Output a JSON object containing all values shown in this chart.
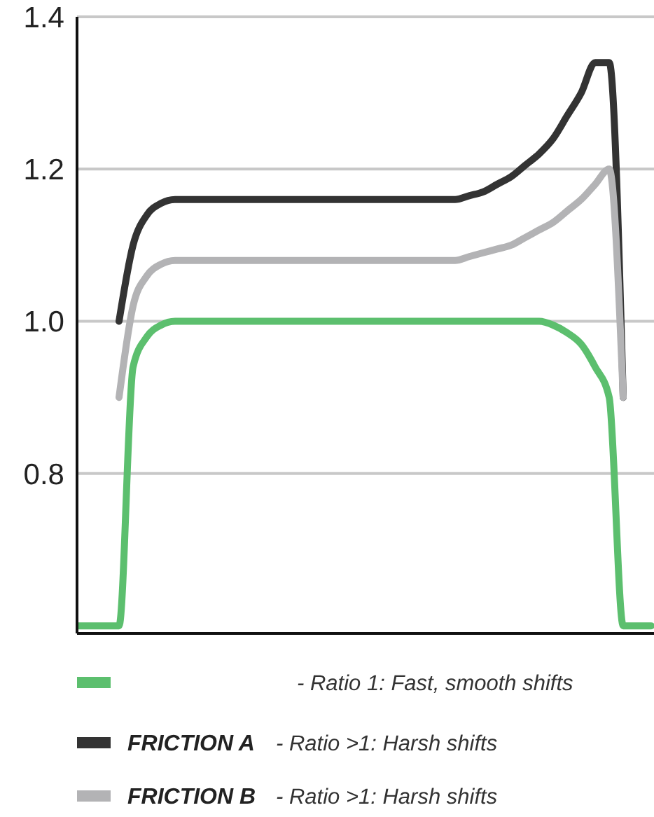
{
  "chart_data": {
    "type": "line",
    "categories": [
      null,
      null,
      null,
      null,
      null,
      null,
      null,
      null,
      null,
      null,
      null,
      null,
      null,
      null,
      null,
      null,
      null,
      null,
      null,
      null,
      null,
      null,
      null,
      null,
      null,
      null,
      null,
      null,
      null,
      null,
      null,
      null,
      null,
      null,
      null,
      null,
      null,
      null,
      null,
      null,
      null,
      null
    ],
    "series": [
      {
        "color": "#5cbf6e",
        "values": [
          0.6,
          0.6,
          0.6,
          0.6,
          0.94,
          0.98,
          0.995,
          1.0,
          1.0,
          1.0,
          1.0,
          1.0,
          1.0,
          1.0,
          1.0,
          1.0,
          1.0,
          1.0,
          1.0,
          1.0,
          1.0,
          1.0,
          1.0,
          1.0,
          1.0,
          1.0,
          1.0,
          1.0,
          1.0,
          1.0,
          1.0,
          1.0,
          1.0,
          1.0,
          0.995,
          0.985,
          0.97,
          0.94,
          0.9,
          0.6,
          0.6,
          0.6
        ]
      },
      {
        "name": "FRICTION A",
        "color": "#333333",
        "values": [
          null,
          null,
          null,
          1.0,
          1.1,
          1.14,
          1.155,
          1.16,
          1.16,
          1.16,
          1.16,
          1.16,
          1.16,
          1.16,
          1.16,
          1.16,
          1.16,
          1.16,
          1.16,
          1.16,
          1.16,
          1.16,
          1.16,
          1.16,
          1.16,
          1.16,
          1.16,
          1.16,
          1.165,
          1.17,
          1.18,
          1.19,
          1.205,
          1.22,
          1.24,
          1.27,
          1.3,
          1.34,
          1.34,
          0.9,
          null,
          null
        ]
      },
      {
        "name": "FRICTION B",
        "color": "#b3b3b5",
        "values": [
          null,
          null,
          null,
          0.9,
          1.02,
          1.06,
          1.075,
          1.08,
          1.08,
          1.08,
          1.08,
          1.08,
          1.08,
          1.08,
          1.08,
          1.08,
          1.08,
          1.08,
          1.08,
          1.08,
          1.08,
          1.08,
          1.08,
          1.08,
          1.08,
          1.08,
          1.08,
          1.08,
          1.085,
          1.09,
          1.095,
          1.1,
          1.11,
          1.12,
          1.13,
          1.145,
          1.16,
          1.18,
          1.2,
          0.9,
          null,
          null
        ]
      }
    ],
    "ylim": [
      0.59,
      1.4
    ],
    "yticks": [
      {
        "value": 0.8,
        "label": "0.8"
      },
      {
        "value": 1.0,
        "label": "1.0"
      },
      {
        "value": 1.2,
        "label": "1.2"
      },
      {
        "value": 1.4,
        "label": "1.4"
      }
    ],
    "grid": "y",
    "tick_labels": "y",
    "legend": "bottom",
    "marker": "none",
    "line_style": "solid",
    "annotations": [
      "- Ratio 1: Fast, smooth shifts",
      "- Ratio >1: Harsh shifts",
      "- Ratio >1: Harsh shifts"
    ]
  }
}
